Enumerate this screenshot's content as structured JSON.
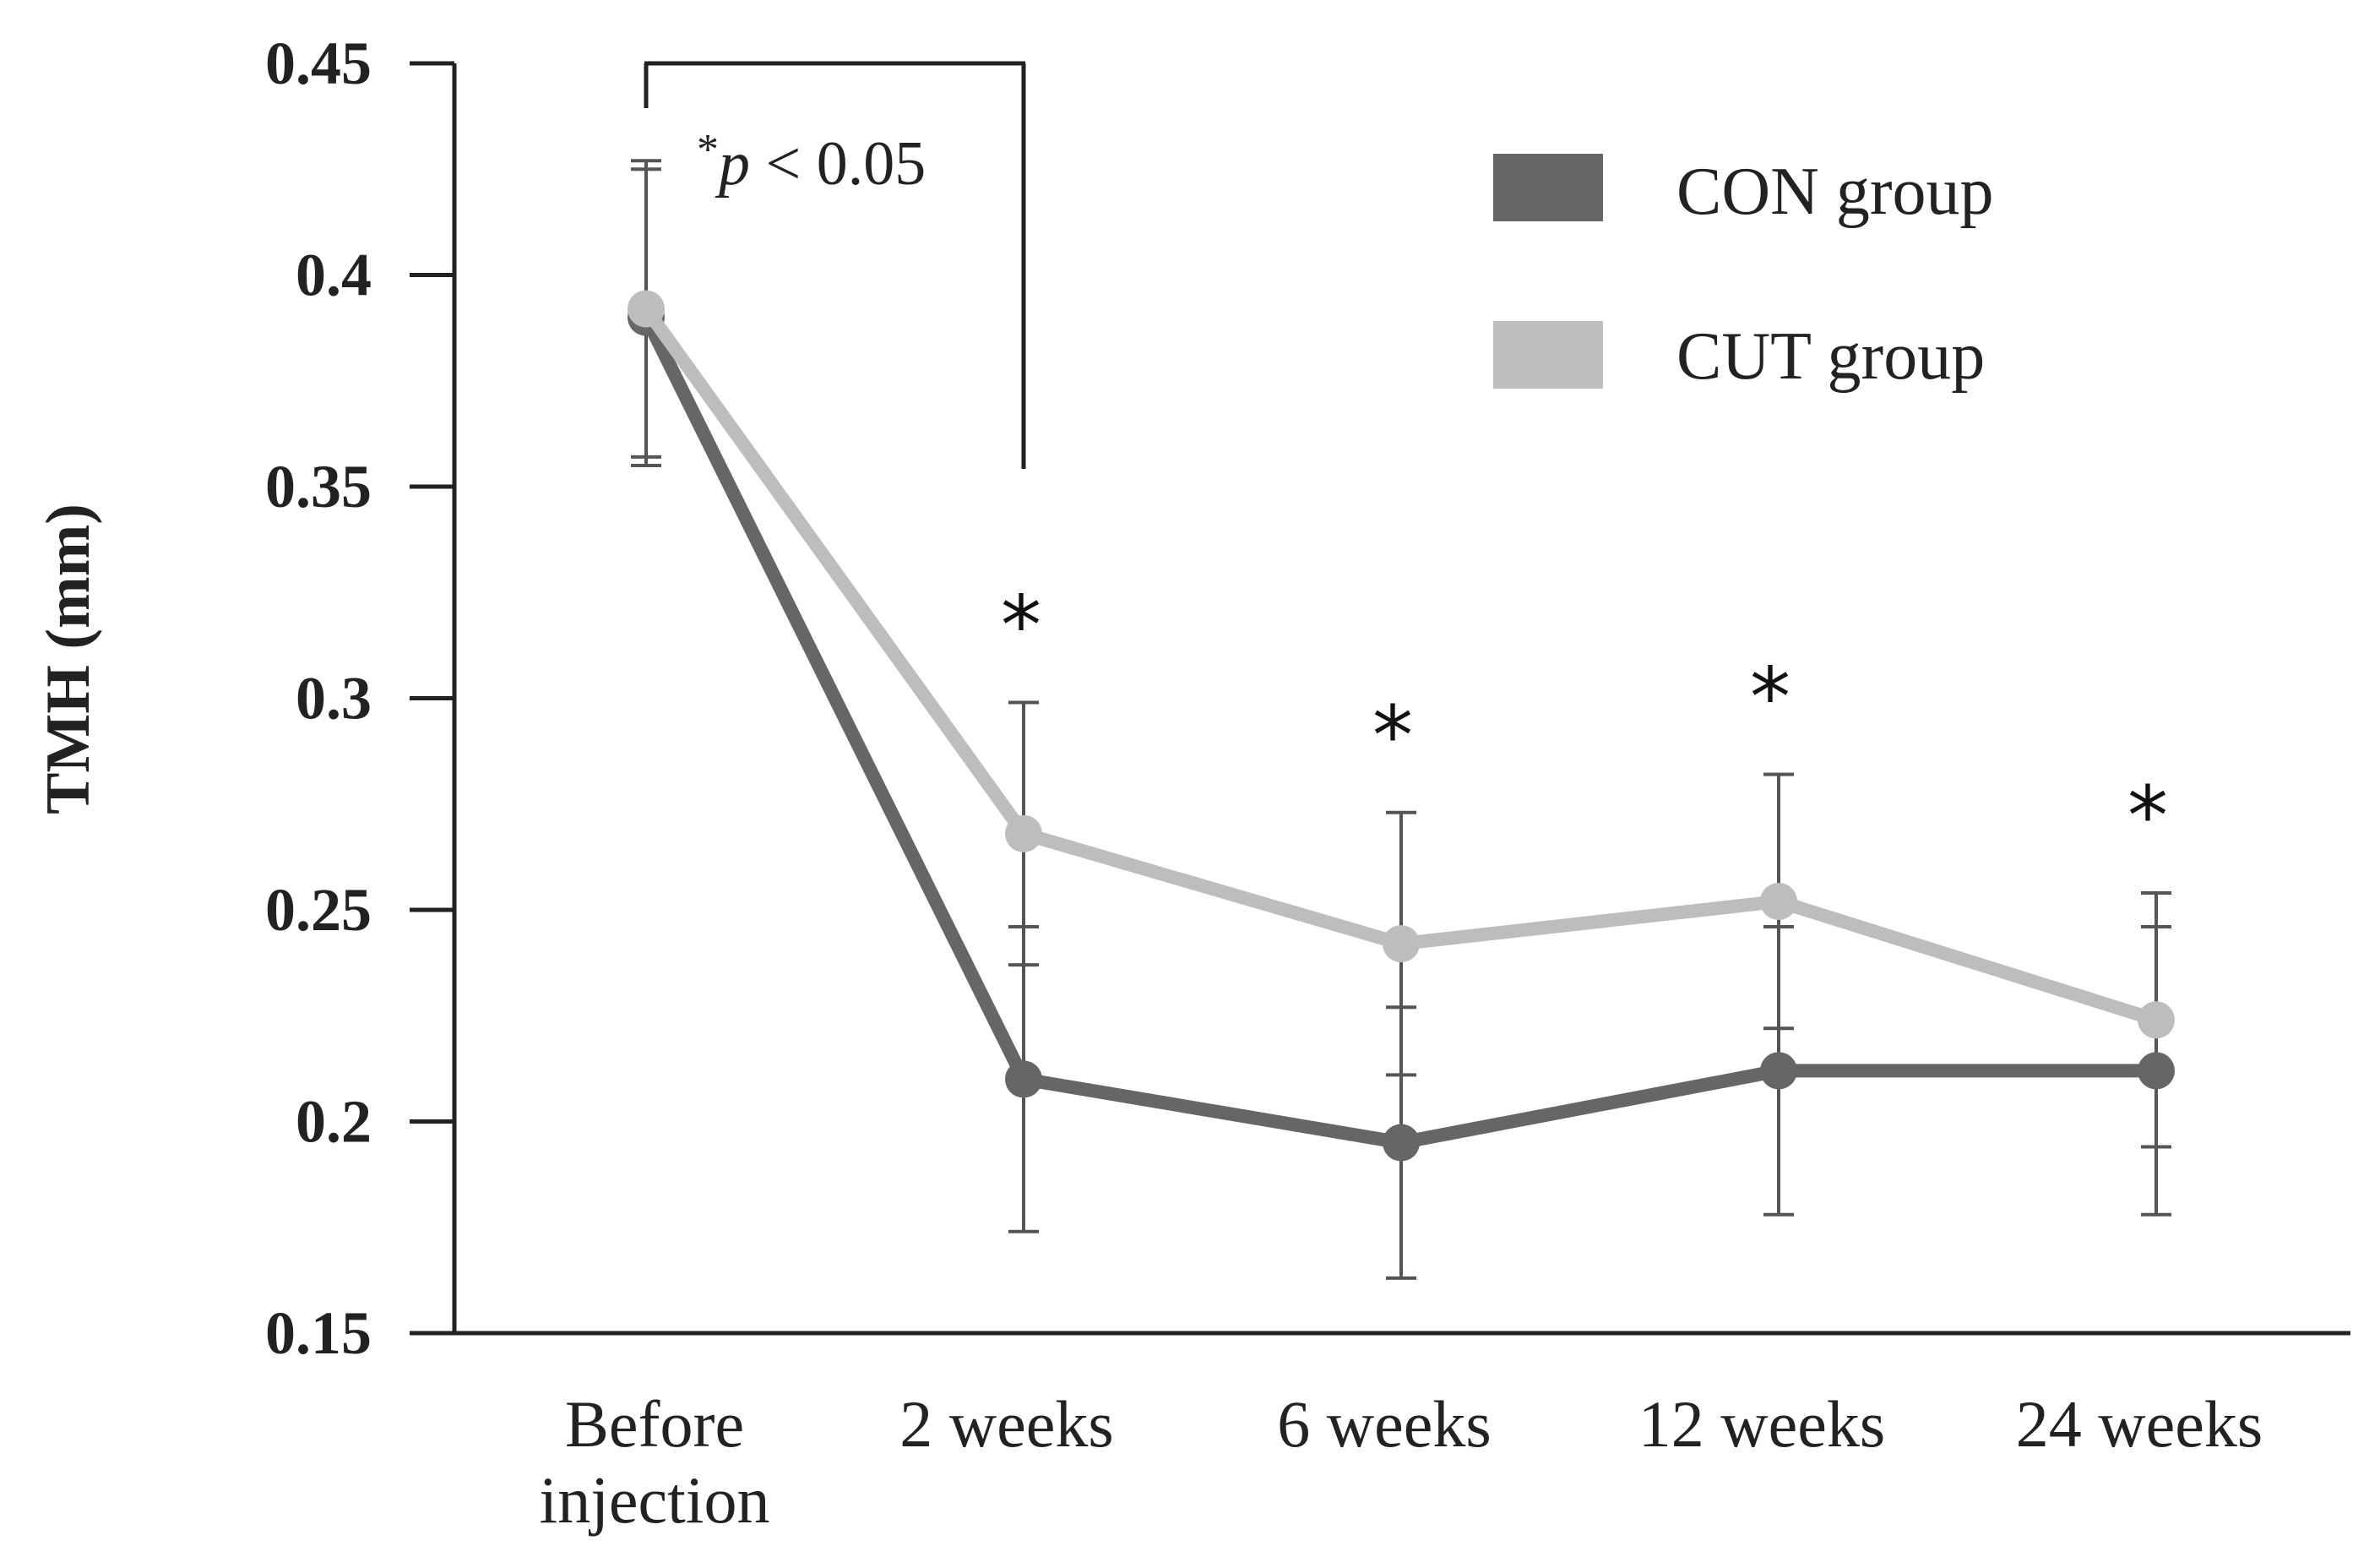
{
  "chart_data": {
    "type": "line",
    "title": "",
    "xlabel": "",
    "ylabel": "TMH (mm)",
    "ylim": [
      0.15,
      0.45
    ],
    "yticks": [
      "0.15",
      "0.2",
      "0.25",
      "0.3",
      "0.35",
      "0.4",
      "0.45"
    ],
    "categories": [
      "Before injection",
      "2 weeks",
      "6 weeks",
      "12 weeks",
      "24 weeks"
    ],
    "category_lines": [
      [
        "Before",
        "injection"
      ],
      [
        "2 weeks"
      ],
      [
        "6 weeks"
      ],
      [
        "12 weeks"
      ],
      [
        "24 weeks"
      ]
    ],
    "series": [
      {
        "name": "CON group",
        "color": "#666666",
        "values": [
          0.39,
          0.21,
          0.195,
          0.212,
          0.212
        ],
        "errors": [
          0.035,
          0.036,
          0.032,
          0.034,
          0.034
        ]
      },
      {
        "name": "CUT group",
        "color": "#bdbdbd",
        "values": [
          0.392,
          0.268,
          0.242,
          0.252,
          0.224
        ],
        "errors": [
          0.035,
          0.031,
          0.031,
          0.03,
          0.03
        ]
      }
    ],
    "significance_markers": [
      "*",
      "*",
      "*",
      "*"
    ],
    "significance_categories": [
      "2 weeks",
      "6 weeks",
      "12 weeks",
      "24 weeks"
    ],
    "annotation": {
      "text_star": "*",
      "text_p": "p",
      "text_rest": " < 0.05",
      "from_category": "Before injection",
      "to_category": "2 weeks"
    },
    "legend": {
      "position": "top-right"
    }
  }
}
